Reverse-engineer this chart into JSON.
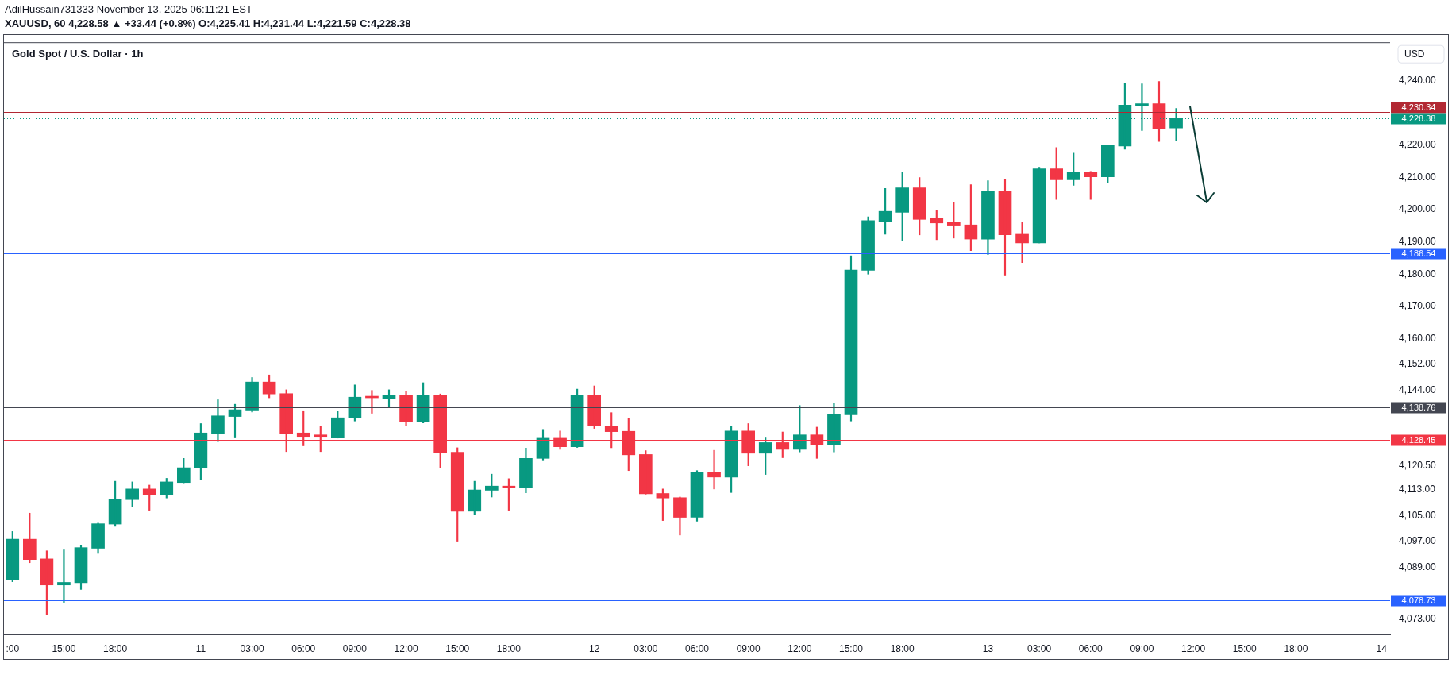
{
  "chart_data": {
    "type": "candlestick",
    "title": "Gold Spot / U.S. Dollar · 1h",
    "subtitle": "XAUUSD, 60  4,228.58 ▲ +33.44 (+0.8%) O:4,225.41 H:4,231.44 L:4,221.59 C:4,228.38",
    "ylabel": "USD",
    "annotations": [
      "AdilHussain731333 November 13, 2025 06:11:21 EST"
    ],
    "categories": [
      ":00",
      null,
      null,
      "15:00",
      null,
      null,
      "18:00",
      null,
      null,
      null,
      null,
      "11",
      null,
      null,
      "03:00",
      null,
      null,
      "06:00",
      null,
      null,
      "09:00",
      null,
      null,
      "12:00",
      null,
      null,
      "15:00",
      null,
      null,
      "18:00",
      null,
      null,
      null,
      null,
      "12",
      null,
      null,
      "03:00",
      null,
      null,
      "06:00",
      null,
      null,
      "09:00",
      null,
      null,
      "12:00",
      null,
      null,
      "15:00",
      null,
      null,
      "18:00",
      null,
      null,
      null,
      null,
      "13",
      null,
      null,
      "03:00",
      null,
      null,
      "06:00",
      null,
      null,
      "09:00",
      null,
      null,
      "12:00",
      null,
      null,
      "15:00",
      null,
      null,
      "18:00",
      null,
      null,
      null,
      null,
      "14"
    ],
    "ohlc": [
      [
        4085.2,
        4100.1,
        4084.5,
        4097.7
      ],
      [
        4097.7,
        4105.8,
        4090.4,
        4091.4
      ],
      [
        4091.6,
        4094.1,
        4074.4,
        4083.5
      ],
      [
        4083.5,
        4094.4,
        4078.1,
        4084.3
      ],
      [
        4084.2,
        4095.7,
        4082.1,
        4095.1
      ],
      [
        4094.9,
        4102.7,
        4093.3,
        4102.5
      ],
      [
        4102.4,
        4115.7,
        4101.7,
        4110.2
      ],
      [
        4110.0,
        4115.5,
        4107.8,
        4113.3
      ],
      [
        4113.3,
        4114.5,
        4106.7,
        4111.4
      ],
      [
        4111.4,
        4116.6,
        4110.5,
        4115.5
      ],
      [
        4115.3,
        4122.8,
        4115.2,
        4119.9
      ],
      [
        4119.8,
        4133.6,
        4116.2,
        4130.7
      ],
      [
        4130.5,
        4141.0,
        4128.0,
        4136.0
      ],
      [
        4135.8,
        4139.6,
        4129.4,
        4137.9
      ],
      [
        4137.8,
        4147.9,
        4137.2,
        4146.5
      ],
      [
        4146.5,
        4148.7,
        4141.6,
        4142.8
      ],
      [
        4142.9,
        4144.1,
        4124.9,
        4130.6
      ],
      [
        4130.7,
        4137.6,
        4126.7,
        4129.6
      ],
      [
        4129.8,
        4132.9,
        4124.9,
        4129.6
      ],
      [
        4129.3,
        4137.4,
        4129.1,
        4135.4
      ],
      [
        4135.3,
        4145.6,
        4134.4,
        4141.8
      ],
      [
        4141.8,
        4143.9,
        4136.8,
        4141.6
      ],
      [
        4141.3,
        4144.1,
        4138.9,
        4142.4
      ],
      [
        4142.4,
        4143.6,
        4133.0,
        4134.1
      ],
      [
        4134.1,
        4146.3,
        4133.8,
        4142.3
      ],
      [
        4142.3,
        4142.8,
        4119.8,
        4124.7
      ],
      [
        4124.7,
        4126.1,
        4097.1,
        4106.4
      ],
      [
        4106.4,
        4115.7,
        4105.2,
        4113.0
      ],
      [
        4112.9,
        4117.9,
        4110.8,
        4114.2
      ],
      [
        4114.2,
        4116.5,
        4106.7,
        4113.7
      ],
      [
        4113.7,
        4126.0,
        4112.1,
        4122.8
      ],
      [
        4122.8,
        4131.8,
        4122.3,
        4129.3
      ],
      [
        4129.3,
        4131.3,
        4125.6,
        4126.4
      ],
      [
        4126.4,
        4144.3,
        4126.2,
        4142.5
      ],
      [
        4142.5,
        4145.3,
        4132.1,
        4132.9
      ],
      [
        4132.9,
        4137.0,
        4126.1,
        4131.1
      ],
      [
        4131.2,
        4135.3,
        4119.0,
        4123.9
      ],
      [
        4124.0,
        4125.2,
        4111.7,
        4111.8
      ],
      [
        4111.9,
        4113.3,
        4103.5,
        4110.5
      ],
      [
        4110.6,
        4110.8,
        4099.0,
        4104.5
      ],
      [
        4104.5,
        4119.0,
        4103.3,
        4118.6
      ],
      [
        4118.6,
        4125.3,
        4113.3,
        4117.0
      ],
      [
        4117.0,
        4132.7,
        4112.2,
        4131.3
      ],
      [
        4131.3,
        4133.6,
        4120.5,
        4124.4
      ],
      [
        4124.4,
        4129.4,
        4117.8,
        4127.7
      ],
      [
        4127.7,
        4131.0,
        4123.0,
        4125.6
      ],
      [
        4125.6,
        4139.2,
        4124.8,
        4130.1
      ],
      [
        4130.1,
        4132.5,
        4122.8,
        4127.0
      ],
      [
        4127.0,
        4139.9,
        4124.8,
        4136.6
      ],
      [
        4136.3,
        4185.7,
        4134.4,
        4181.3
      ],
      [
        4181.2,
        4197.8,
        4180.0,
        4196.6
      ],
      [
        4196.3,
        4206.6,
        4192.4,
        4199.5
      ],
      [
        4199.2,
        4211.7,
        4190.5,
        4206.8
      ],
      [
        4206.8,
        4210.0,
        4192.2,
        4197.0
      ],
      [
        4197.3,
        4199.7,
        4190.7,
        4195.9
      ],
      [
        4196.1,
        4202.2,
        4191.2,
        4195.2
      ],
      [
        4195.3,
        4207.8,
        4187.3,
        4190.9
      ],
      [
        4190.9,
        4209.0,
        4186.1,
        4205.8
      ],
      [
        4205.8,
        4209.3,
        4179.7,
        4192.2
      ],
      [
        4192.4,
        4196.1,
        4183.6,
        4189.7
      ],
      [
        4189.7,
        4213.2,
        4189.7,
        4212.7
      ],
      [
        4212.7,
        4219.3,
        4203.2,
        4209.3
      ],
      [
        4209.3,
        4217.6,
        4207.6,
        4211.7
      ],
      [
        4211.7,
        4211.9,
        4203.2,
        4210.2
      ],
      [
        4210.2,
        4220.0,
        4208.3,
        4220.0
      ],
      [
        4219.8,
        4239.3,
        4218.8,
        4232.5
      ],
      [
        4232.3,
        4239.1,
        4224.6,
        4232.9
      ],
      [
        4232.9,
        4239.8,
        4221.2,
        4225.1
      ],
      [
        4225.41,
        4231.44,
        4221.59,
        4228.38
      ],
      null,
      null,
      null,
      null,
      null,
      null,
      null,
      null,
      null,
      null,
      null,
      null
    ],
    "colors": [
      "#089981",
      "#f23645",
      "#f23645",
      "#089981",
      "#089981",
      "#089981",
      "#089981",
      "#089981",
      "#f23645",
      "#089981",
      "#089981",
      "#089981",
      "#089981",
      "#089981",
      "#089981",
      "#f23645",
      "#f23645",
      "#f23645",
      "#f23645",
      "#089981",
      "#089981",
      "#f23645",
      "#089981",
      "#f23645",
      "#089981",
      "#f23645",
      "#f23645",
      "#089981",
      "#089981",
      "#f23645",
      "#089981",
      "#089981",
      "#f23645",
      "#089981",
      "#f23645",
      "#f23645",
      "#f23645",
      "#f23645",
      "#f23645",
      "#f23645",
      "#089981",
      "#f23645",
      "#089981",
      "#f23645",
      "#089981",
      "#f23645",
      "#089981",
      "#f23645",
      "#089981",
      "#089981",
      "#089981",
      "#089981",
      "#089981",
      "#f23645",
      "#f23645",
      "#f23645",
      "#f23645",
      "#089981",
      "#f23645",
      "#f23645",
      "#089981",
      "#f23645",
      "#089981",
      "#f23645",
      "#089981",
      "#089981",
      "#089981",
      "#f23645",
      "#089981",
      null,
      null,
      null,
      null,
      null,
      null,
      null,
      null,
      null,
      null,
      null,
      null
    ],
    "ylim": [
      4068,
      4252
    ],
    "yticks": [
      {
        "value": 4240,
        "label": "4,240.00"
      },
      {
        "value": 4220,
        "label": "4,220.00"
      },
      {
        "value": 4210,
        "label": "4,210.00"
      },
      {
        "value": 4200,
        "label": "4,200.00"
      },
      {
        "value": 4190,
        "label": "4,190.00"
      },
      {
        "value": 4180,
        "label": "4,180.00"
      },
      {
        "value": 4170,
        "label": "4,170.00"
      },
      {
        "value": 4160,
        "label": "4,160.00"
      },
      {
        "value": 4152,
        "label": "4,152.00"
      },
      {
        "value": 4144,
        "label": "4,144.00"
      },
      {
        "value": 4120.5,
        "label": "4,120.50"
      },
      {
        "value": 4113,
        "label": "4,113.00"
      },
      {
        "value": 4105,
        "label": "4,105.00"
      },
      {
        "value": 4097,
        "label": "4,097.00"
      },
      {
        "value": 4089,
        "label": "4,089.00"
      },
      {
        "value": 4073,
        "label": "4,073.00"
      }
    ],
    "ref_lines": [
      {
        "axis": "y",
        "value": 4230.34,
        "label": "4,230.34",
        "color": "#b22833"
      },
      {
        "axis": "y",
        "value": 4228.38,
        "label": "4,228.38",
        "color": "#089981",
        "line_style": "dotted"
      },
      {
        "axis": "y",
        "value": 4186.54,
        "label": "4,186.54",
        "color": "#2962ff"
      },
      {
        "axis": "y",
        "value": 4138.76,
        "label": "4,138.76",
        "color": "#434651"
      },
      {
        "axis": "y",
        "value": 4128.45,
        "label": "4,128.45",
        "color": "#f23645"
      },
      {
        "axis": "y",
        "value": 4078.73,
        "label": "4,078.73",
        "color": "#2962ff"
      }
    ]
  }
}
